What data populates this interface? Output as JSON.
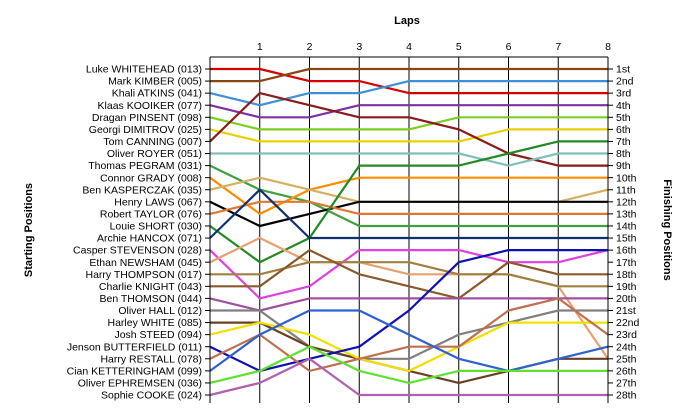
{
  "chart_data": {
    "type": "line",
    "title": "Laps",
    "ylabel_left": "Starting Positions",
    "ylabel_right": "Finishing Positions",
    "x_ticks": [
      "1",
      "2",
      "3",
      "4",
      "5",
      "6",
      "7",
      "8"
    ],
    "xlim": [
      0,
      8
    ],
    "ylim": [
      1,
      28
    ],
    "start_labels": [
      "Luke WHITEHEAD (013)",
      "Mark KIMBER (005)",
      "Khali ATKINS (041)",
      "Klaas KOOIKER (077)",
      "Dragan PINSENT (098)",
      "Georgi DIMITROV (025)",
      "Tom CANNING (007)",
      "Oliver ROYER (051)",
      "Thomas PEGRAM (031)",
      "Connor GRADY (008)",
      "Ben KASPERCZAK (035)",
      "Henry LAWS (067)",
      "Robert TAYLOR (076)",
      "Louie SHORT (030)",
      "Archie HANCOX (071)",
      "Casper STEVENSON (028)",
      "Ethan NEWSHAM (045)",
      "Harry THOMPSON (017)",
      "Charlie KNIGHT (043)",
      "Ben THOMSON (044)",
      "Oliver HALL (012)",
      "Harley WHITE (085)",
      "Josh STEED (094)",
      "Jenson BUTTERFIELD (011)",
      "Harry RESTALL (078)",
      "Cian KETTERINGHAM (099)",
      "Oliver EPHREMSEN (036)",
      "Sophie COOKE (024)"
    ],
    "finish_labels": [
      "1st",
      "2nd",
      "3rd",
      "4th",
      "5th",
      "6th",
      "7th",
      "8th",
      "9th",
      "10th",
      "11th",
      "12th",
      "13th",
      "14th",
      "15th",
      "16th",
      "17th",
      "18th",
      "19th",
      "20th",
      "21st",
      "22nd",
      "23rd",
      "24th",
      "25th",
      "26th",
      "27th",
      "28th"
    ],
    "series": [
      {
        "color": "#D40000",
        "values": [
          1,
          1,
          2,
          2,
          3,
          3,
          3,
          3,
          3
        ]
      },
      {
        "color": "#8B4513",
        "values": [
          2,
          2,
          1,
          1,
          1,
          1,
          1,
          1,
          1
        ]
      },
      {
        "color": "#3C8FD8",
        "values": [
          3,
          4,
          3,
          3,
          2,
          2,
          2,
          2,
          2
        ]
      },
      {
        "color": "#8030A0",
        "values": [
          4,
          5,
          5,
          4,
          4,
          4,
          4,
          4,
          4
        ]
      },
      {
        "color": "#7CCF1F",
        "values": [
          5,
          6,
          6,
          6,
          6,
          5,
          5,
          5,
          5
        ]
      },
      {
        "color": "#E8D000",
        "values": [
          6,
          7,
          7,
          7,
          7,
          7,
          6,
          6,
          6
        ]
      },
      {
        "color": "#8B1A1A",
        "values": [
          7,
          3,
          4,
          5,
          5,
          6,
          8,
          9,
          9
        ]
      },
      {
        "color": "#80C0B8",
        "values": [
          8,
          8,
          8,
          8,
          8,
          8,
          9,
          8,
          8
        ]
      },
      {
        "color": "#40A040",
        "values": [
          9,
          11,
          12,
          14,
          14,
          14,
          14,
          14,
          14
        ]
      },
      {
        "color": "#FF8C00",
        "values": [
          10,
          13,
          11,
          10,
          10,
          10,
          10,
          10,
          10
        ]
      },
      {
        "color": "#D4B060",
        "values": [
          11,
          10,
          11,
          12,
          12,
          12,
          12,
          12,
          11
        ]
      },
      {
        "color": "#000000",
        "values": [
          12,
          14,
          13,
          12,
          12,
          12,
          12,
          12,
          12
        ]
      },
      {
        "color": "#E07830",
        "values": [
          13,
          12,
          12,
          13,
          13,
          13,
          13,
          13,
          13
        ]
      },
      {
        "color": "#228B22",
        "values": [
          14,
          17,
          15,
          9,
          9,
          9,
          8,
          7,
          7
        ]
      },
      {
        "color": "#103070",
        "values": [
          15,
          11,
          15,
          15,
          15,
          15,
          15,
          15,
          15
        ]
      },
      {
        "color": "#E040E0",
        "values": [
          16,
          20,
          19,
          16,
          16,
          16,
          17,
          17,
          16
        ]
      },
      {
        "color": "#E8A070",
        "values": [
          17,
          15,
          17,
          17,
          18,
          18,
          18,
          19,
          25
        ]
      },
      {
        "color": "#A08040",
        "values": [
          18,
          18,
          17,
          17,
          17,
          18,
          18,
          19,
          19
        ]
      },
      {
        "color": "#8B5A2B",
        "values": [
          19,
          19,
          16,
          18,
          19,
          20,
          17,
          18,
          18
        ]
      },
      {
        "color": "#A050A0",
        "values": [
          20,
          21,
          20,
          20,
          20,
          20,
          20,
          20,
          20
        ]
      },
      {
        "color": "#808080",
        "values": [
          21,
          21,
          24,
          25,
          25,
          23,
          22,
          21,
          21
        ]
      },
      {
        "color": "#6A4020",
        "values": [
          22,
          22,
          24,
          25,
          26,
          27,
          26,
          25,
          25
        ]
      },
      {
        "color": "#F0E000",
        "values": [
          23,
          22,
          23,
          25,
          26,
          24,
          22,
          22,
          22
        ]
      },
      {
        "color": "#1010B0",
        "values": [
          24,
          26,
          25,
          24,
          21,
          17,
          16,
          16,
          16
        ]
      },
      {
        "color": "#C07050",
        "values": [
          25,
          23,
          26,
          25,
          24,
          24,
          21,
          20,
          23
        ]
      },
      {
        "color": "#3060D0",
        "values": [
          26,
          23,
          21,
          21,
          23,
          25,
          26,
          25,
          24
        ]
      },
      {
        "color": "#60E030",
        "values": [
          27,
          26,
          24,
          26,
          27,
          26,
          26,
          26,
          26
        ]
      },
      {
        "color": "#B060B0",
        "values": [
          28,
          27,
          25,
          28,
          28,
          28,
          28,
          28,
          28
        ]
      }
    ]
  }
}
